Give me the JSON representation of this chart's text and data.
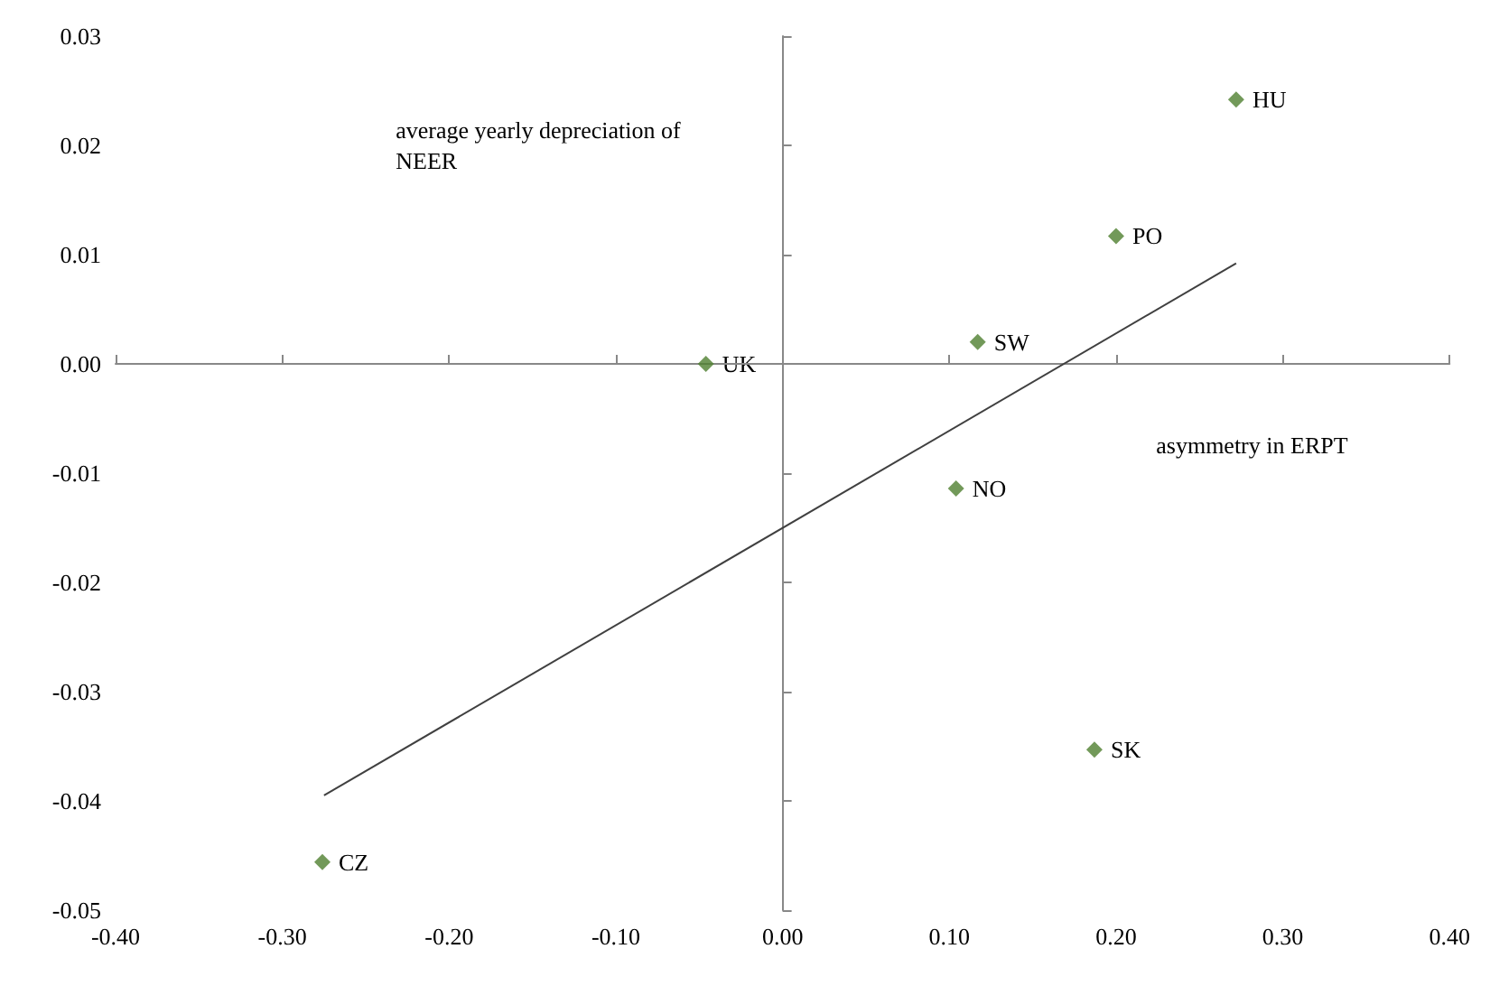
{
  "chart_data": {
    "type": "scatter",
    "xlabel": "asymmetry in ERPT",
    "ylabel": "average yearly depreciation of NEER",
    "series": [
      {
        "type": "scatter",
        "color": "#4f7f2f",
        "marker": "diamond",
        "x": [
          0.272,
          0.2,
          0.117,
          -0.046,
          0.104,
          0.187,
          -0.276
        ],
        "values": [
          0.0242,
          0.0117,
          0.002,
          0.0,
          -0.0114,
          -0.0353,
          -0.0456
        ]
      },
      {
        "type": "line",
        "color": "#404040",
        "marker": "none",
        "x": [
          -0.275,
          0.272
        ],
        "values": [
          -0.0395,
          0.0092
        ]
      }
    ],
    "annotations": [
      {
        "text": "HU",
        "x": 0.272,
        "y": 0.0242
      },
      {
        "text": "PO",
        "x": 0.2,
        "y": 0.0117
      },
      {
        "text": "SW",
        "x": 0.117,
        "y": 0.002
      },
      {
        "text": "UK",
        "x": -0.046,
        "y": 0.0
      },
      {
        "text": "NO",
        "x": 0.104,
        "y": -0.0114
      },
      {
        "text": "SK",
        "x": 0.187,
        "y": -0.0353
      },
      {
        "text": "CZ",
        "x": -0.276,
        "y": -0.0456
      }
    ],
    "xlim": [
      -0.4,
      0.4
    ],
    "xticks": [
      {
        "value": -0.4,
        "label": "-0.40"
      },
      {
        "value": -0.3,
        "label": "-0.30"
      },
      {
        "value": -0.2,
        "label": "-0.20"
      },
      {
        "value": -0.1,
        "label": "-0.10"
      },
      {
        "value": 0,
        "label": "0.00"
      },
      {
        "value": 0.1,
        "label": "0.10"
      },
      {
        "value": 0.2,
        "label": "0.20"
      },
      {
        "value": 0.3,
        "label": "0.30"
      },
      {
        "value": 0.4,
        "label": "0.40"
      }
    ],
    "ylim": [
      -0.05,
      0.03
    ],
    "yticks": [
      {
        "value": -0.05,
        "label": "-0.05"
      },
      {
        "value": -0.04,
        "label": "-0.04"
      },
      {
        "value": -0.03,
        "label": "-0.03"
      },
      {
        "value": -0.02,
        "label": "-0.02"
      },
      {
        "value": -0.01,
        "label": "-0.01"
      },
      {
        "value": 0,
        "label": "0.00"
      },
      {
        "value": 0.01,
        "label": "0.01"
      },
      {
        "value": 0.02,
        "label": "0.02"
      },
      {
        "value": 0.03,
        "label": "0.03"
      }
    ],
    "tick_labels": "xy"
  }
}
